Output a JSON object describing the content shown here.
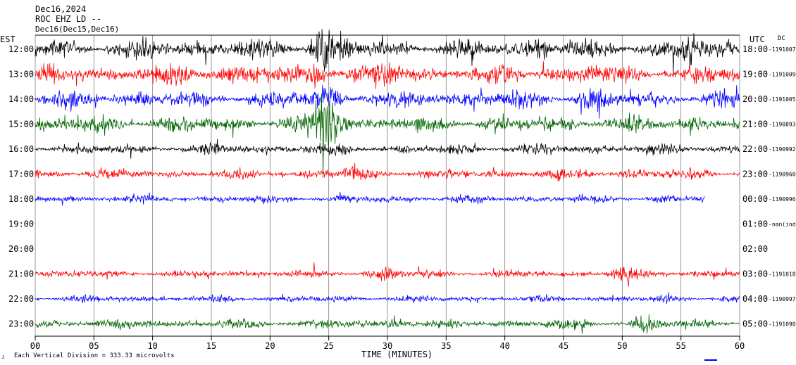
{
  "header": {
    "date": "Dec16,2024",
    "station": "ROC EHZ LD --",
    "obscured": "Dec16(Dec15,Dec16)"
  },
  "labels": {
    "left_tz": "EST",
    "right_tz": "UTC",
    "right_top": "DC",
    "scale_note": "Each Vertical Division = 333.33 microvolts",
    "xlabel": "TIME (MINUTES)"
  },
  "colors": {
    "black": "#000000",
    "red": "#ff0000",
    "blue": "#0000ff",
    "green": "#006400",
    "grid": "#808080"
  },
  "chart_data": {
    "type": "line",
    "title": "",
    "xlabel": "TIME (MINUTES)",
    "ylabel": "",
    "xlim": [
      0,
      60
    ],
    "x_ticks": [
      "00",
      "05",
      "10",
      "15",
      "20",
      "25",
      "30",
      "35",
      "40",
      "45",
      "50",
      "55",
      "60"
    ],
    "grid": "vertical every 5 minutes",
    "rows": [
      {
        "local": "12:00",
        "utc": "18:00",
        "dc": "-1191007",
        "color": "black",
        "amplitude": 16,
        "end_minute": 60
      },
      {
        "local": "13:00",
        "utc": "19:00",
        "dc": "-1191009",
        "color": "red",
        "amplitude": 17,
        "end_minute": 60
      },
      {
        "local": "14:00",
        "utc": "20:00",
        "dc": "-1191005",
        "color": "blue",
        "amplitude": 15,
        "end_minute": 60
      },
      {
        "local": "15:00",
        "utc": "21:00",
        "dc": "-1190893",
        "color": "green",
        "amplitude": 14,
        "end_minute": 60
      },
      {
        "local": "16:00",
        "utc": "22:00",
        "dc": "-1190992",
        "color": "black",
        "amplitude": 9,
        "end_minute": 60
      },
      {
        "local": "17:00",
        "utc": "23:00",
        "dc": "-1190960",
        "color": "red",
        "amplitude": 9,
        "end_minute": 60
      },
      {
        "local": "18:00",
        "utc": "00:00",
        "dc": "-1190996",
        "color": "blue",
        "amplitude": 7,
        "end_minute": 57
      },
      {
        "local": "19:00",
        "utc": "01:00",
        "dc": "-nan(ind",
        "color": "green",
        "amplitude": 0,
        "end_minute": 0
      },
      {
        "local": "20:00",
        "utc": "02:00",
        "dc": "",
        "color": "black",
        "amplitude": 0,
        "end_minute": 0
      },
      {
        "local": "21:00",
        "utc": "03:00",
        "dc": "-1191018",
        "color": "red",
        "amplitude": 7,
        "end_minute": 60
      },
      {
        "local": "22:00",
        "utc": "04:00",
        "dc": "-1190997",
        "color": "blue",
        "amplitude": 6,
        "end_minute": 60
      },
      {
        "local": "23:00",
        "utc": "05:00",
        "dc": "-1191090",
        "color": "green",
        "amplitude": 8,
        "end_minute": 60
      }
    ],
    "events": [
      {
        "row": 0,
        "minute": 24.0,
        "size": 3.2
      },
      {
        "row": 0,
        "minute": 26.0,
        "size": 2.5
      },
      {
        "row": 0,
        "minute": 43.0,
        "size": 2.6
      },
      {
        "row": 0,
        "minute": 55.5,
        "size": 2.8
      },
      {
        "row": 1,
        "minute": 24.5,
        "size": 3.0
      },
      {
        "row": 1,
        "minute": 30.0,
        "size": 2.2
      },
      {
        "row": 2,
        "minute": 25.0,
        "size": 2.4
      },
      {
        "row": 2,
        "minute": 47.0,
        "size": 2.2
      },
      {
        "row": 3,
        "minute": 24.5,
        "size": 4.0
      },
      {
        "row": 3,
        "minute": 25.5,
        "size": 3.0
      },
      {
        "row": 5,
        "minute": 27.0,
        "size": 2.0
      },
      {
        "row": 9,
        "minute": 30.0,
        "size": 2.5
      },
      {
        "row": 9,
        "minute": 50.0,
        "size": 2.5
      },
      {
        "row": 11,
        "minute": 10.0,
        "size": 2.2
      },
      {
        "row": 11,
        "minute": 31.0,
        "size": 2.4
      },
      {
        "row": 11,
        "minute": 52.0,
        "size": 2.4
      }
    ]
  }
}
